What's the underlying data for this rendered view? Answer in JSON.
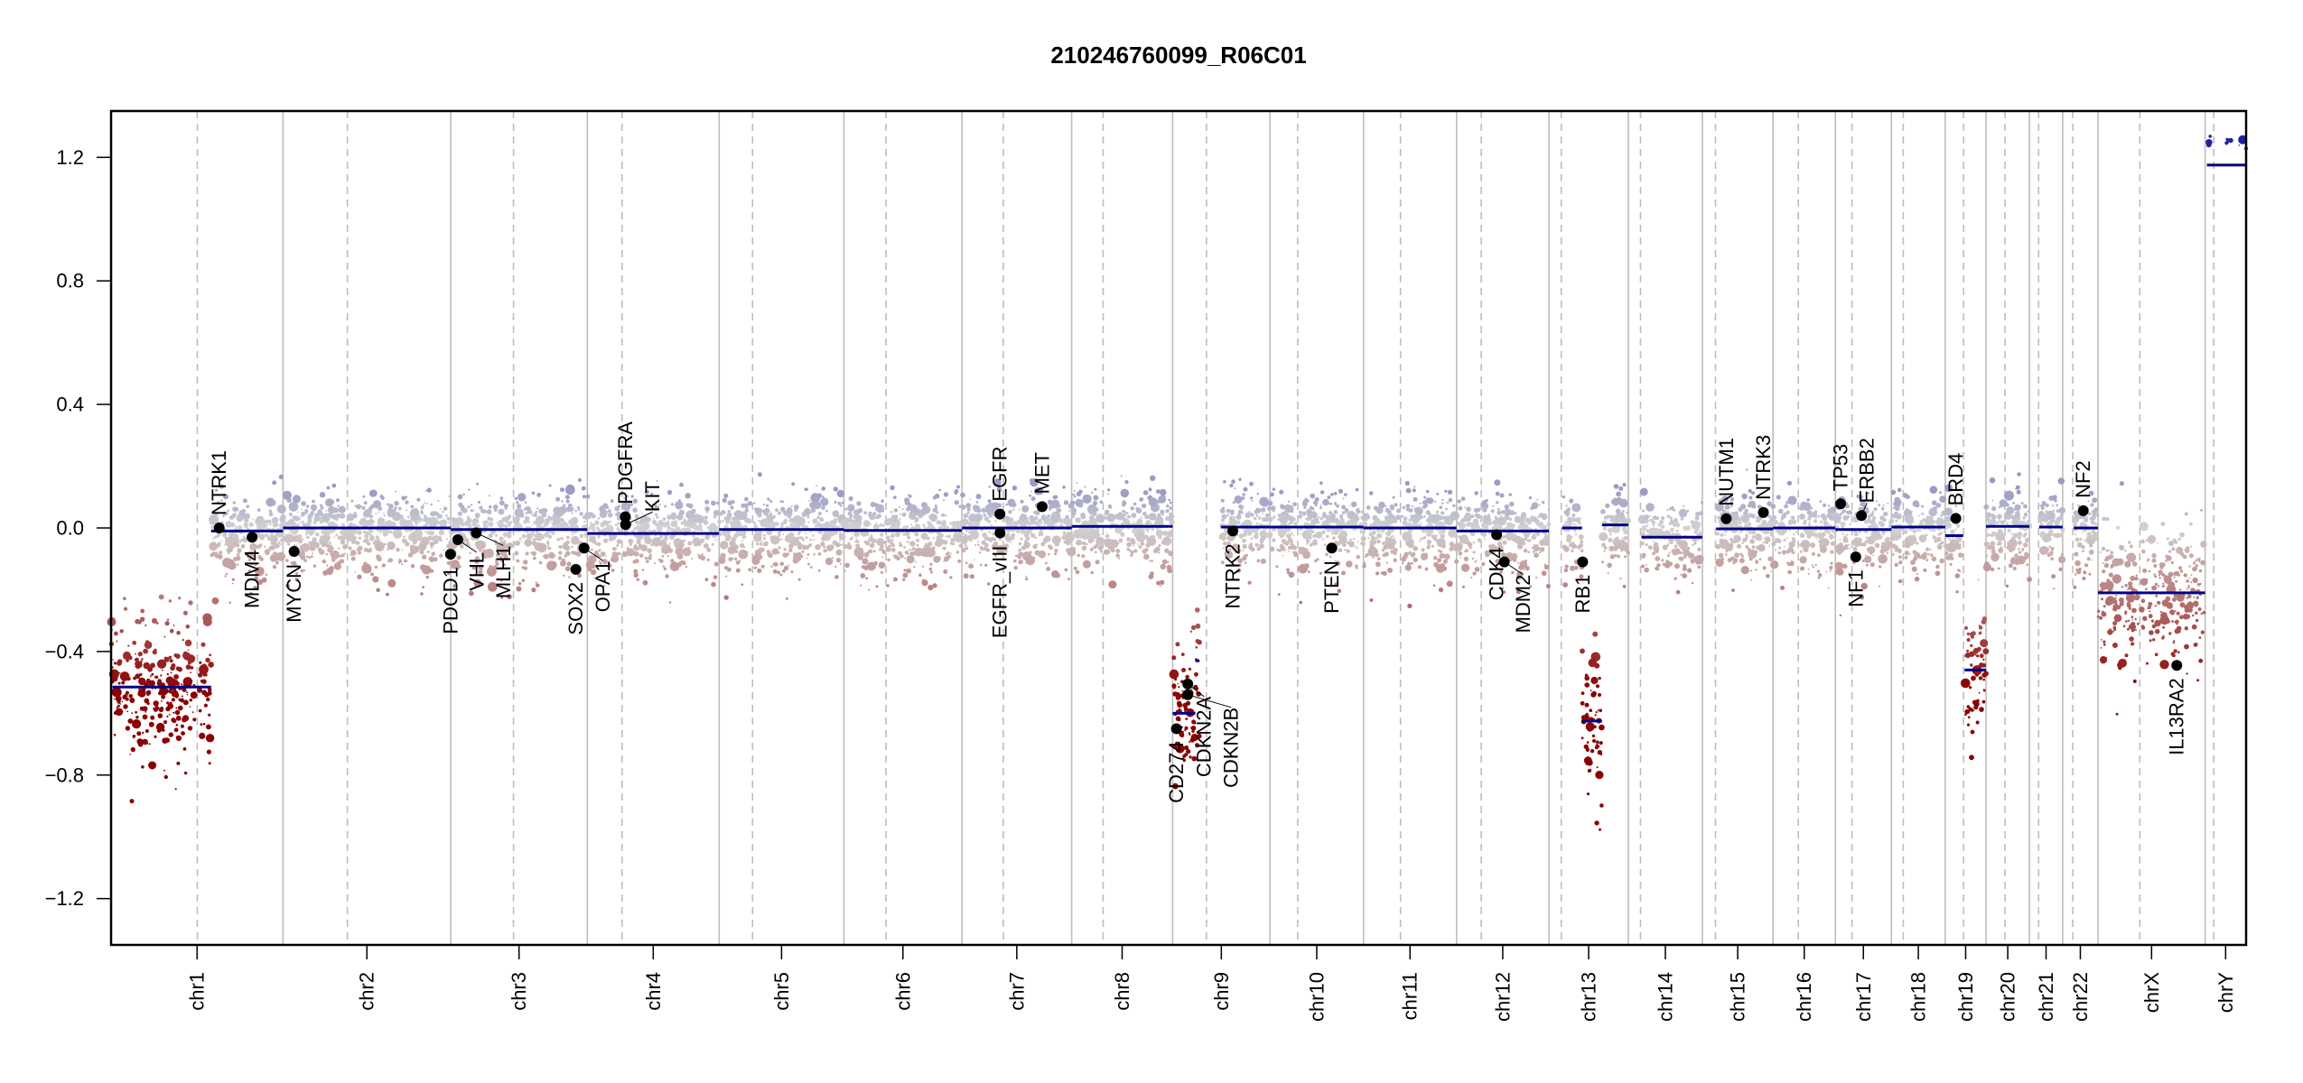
{
  "chart_data": {
    "type": "scatter",
    "title": "210246760099_R06C01",
    "xlabel": "",
    "ylabel": "",
    "ylim": [
      -1.35,
      1.35
    ],
    "yticks": [
      -1.2,
      -0.8,
      -0.4,
      0.0,
      0.4,
      0.8,
      1.2
    ],
    "ytick_labels": [
      "−1.2",
      "−0.8",
      "−0.4",
      "0.0",
      "0.4",
      "0.8",
      "1.2"
    ],
    "grid": false,
    "colors": {
      "segment": "#00008b",
      "gain": "#9a9ac4",
      "neutral": "#d2d2d2",
      "loss_mild": "#c4a0a0",
      "loss_deep": "#8b0000",
      "chr_line": "#bdbdbd",
      "gene_dot": "#000000"
    },
    "chromosomes": [
      {
        "name": "chr1",
        "length_mb": 249.3,
        "centromere_mb": 125.0
      },
      {
        "name": "chr2",
        "length_mb": 243.2,
        "centromere_mb": 93.3
      },
      {
        "name": "chr3",
        "length_mb": 198.0,
        "centromere_mb": 91.0
      },
      {
        "name": "chr4",
        "length_mb": 191.2,
        "centromere_mb": 50.4
      },
      {
        "name": "chr5",
        "length_mb": 180.9,
        "centromere_mb": 48.4
      },
      {
        "name": "chr6",
        "length_mb": 171.1,
        "centromere_mb": 61.0
      },
      {
        "name": "chr7",
        "length_mb": 159.1,
        "centromere_mb": 59.9
      },
      {
        "name": "chr8",
        "length_mb": 146.4,
        "centromere_mb": 45.6
      },
      {
        "name": "chr9",
        "length_mb": 141.2,
        "centromere_mb": 49.0
      },
      {
        "name": "chr10",
        "length_mb": 135.5,
        "centromere_mb": 40.2
      },
      {
        "name": "chr11",
        "length_mb": 135.0,
        "centromere_mb": 53.7
      },
      {
        "name": "chr12",
        "length_mb": 133.9,
        "centromere_mb": 35.8
      },
      {
        "name": "chr13",
        "length_mb": 115.2,
        "centromere_mb": 17.9
      },
      {
        "name": "chr14",
        "length_mb": 107.3,
        "centromere_mb": 17.6
      },
      {
        "name": "chr15",
        "length_mb": 102.5,
        "centromere_mb": 19.0
      },
      {
        "name": "chr16",
        "length_mb": 90.4,
        "centromere_mb": 36.6
      },
      {
        "name": "chr17",
        "length_mb": 81.2,
        "centromere_mb": 24.0
      },
      {
        "name": "chr18",
        "length_mb": 78.1,
        "centromere_mb": 17.2
      },
      {
        "name": "chr19",
        "length_mb": 59.1,
        "centromere_mb": 26.5
      },
      {
        "name": "chr20",
        "length_mb": 63.0,
        "centromere_mb": 27.5
      },
      {
        "name": "chr21",
        "length_mb": 48.1,
        "centromere_mb": 13.2
      },
      {
        "name": "chr22",
        "length_mb": 51.3,
        "centromere_mb": 14.7
      },
      {
        "name": "chrX",
        "length_mb": 155.3,
        "centromere_mb": 60.6
      },
      {
        "name": "chrY",
        "length_mb": 59.4,
        "centromere_mb": 12.5
      }
    ],
    "segments": [
      {
        "chr": "chr1",
        "start_mb": 0,
        "end_mb": 2,
        "value": -0.33
      },
      {
        "chr": "chr1",
        "start_mb": 2,
        "end_mb": 145,
        "value": -0.515
      },
      {
        "chr": "chr1",
        "start_mb": 145,
        "end_mb": 249.3,
        "value": -0.01
      },
      {
        "chr": "chr2",
        "start_mb": 0,
        "end_mb": 243.2,
        "value": 0.0
      },
      {
        "chr": "chr3",
        "start_mb": 0,
        "end_mb": 198.0,
        "value": -0.005
      },
      {
        "chr": "chr4",
        "start_mb": 0,
        "end_mb": 191.2,
        "value": -0.018
      },
      {
        "chr": "chr5",
        "start_mb": 0,
        "end_mb": 180.9,
        "value": -0.005
      },
      {
        "chr": "chr6",
        "start_mb": 0,
        "end_mb": 171.1,
        "value": -0.008
      },
      {
        "chr": "chr7",
        "start_mb": 0,
        "end_mb": 159.1,
        "value": 0.0
      },
      {
        "chr": "chr8",
        "start_mb": 0,
        "end_mb": 146.4,
        "value": 0.005
      },
      {
        "chr": "chr9",
        "start_mb": 0,
        "end_mb": 33,
        "value": -0.6
      },
      {
        "chr": "chr9",
        "start_mb": 33,
        "end_mb": 39,
        "value": -0.43
      },
      {
        "chr": "chr9",
        "start_mb": 70,
        "end_mb": 141.2,
        "value": 0.003
      },
      {
        "chr": "chr10",
        "start_mb": 0,
        "end_mb": 135.5,
        "value": 0.003
      },
      {
        "chr": "chr11",
        "start_mb": 0,
        "end_mb": 135.0,
        "value": 0.0
      },
      {
        "chr": "chr12",
        "start_mb": 0,
        "end_mb": 133.9,
        "value": -0.01
      },
      {
        "chr": "chr13",
        "start_mb": 19,
        "end_mb": 48,
        "value": 0.0
      },
      {
        "chr": "chr13",
        "start_mb": 48,
        "end_mb": 77,
        "value": -0.625
      },
      {
        "chr": "chr13",
        "start_mb": 77,
        "end_mb": 115.2,
        "value": 0.01
      },
      {
        "chr": "chr14",
        "start_mb": 19,
        "end_mb": 107.3,
        "value": -0.03
      },
      {
        "chr": "chr15",
        "start_mb": 20,
        "end_mb": 102.5,
        "value": -0.003
      },
      {
        "chr": "chr16",
        "start_mb": 0,
        "end_mb": 90.4,
        "value": 0.0
      },
      {
        "chr": "chr17",
        "start_mb": 0,
        "end_mb": 81.2,
        "value": -0.005
      },
      {
        "chr": "chr18",
        "start_mb": 0,
        "end_mb": 78.1,
        "value": 0.003
      },
      {
        "chr": "chr19",
        "start_mb": 0,
        "end_mb": 26,
        "value": -0.025
      },
      {
        "chr": "chr19",
        "start_mb": 28,
        "end_mb": 59.1,
        "value": -0.46
      },
      {
        "chr": "chr20",
        "start_mb": 0,
        "end_mb": 63.0,
        "value": 0.005
      },
      {
        "chr": "chr21",
        "start_mb": 14,
        "end_mb": 48.1,
        "value": 0.003
      },
      {
        "chr": "chr22",
        "start_mb": 16,
        "end_mb": 51.3,
        "value": 0.0
      },
      {
        "chr": "chrX",
        "start_mb": 0,
        "end_mb": 155.3,
        "value": -0.21
      },
      {
        "chr": "chrY",
        "start_mb": 2.6,
        "end_mb": 59.4,
        "value": 1.175
      }
    ],
    "genes": [
      {
        "name": "NTRK1",
        "chr": "chr1",
        "pos_mb": 156.8,
        "value": 0.0
      },
      {
        "name": "MDM4",
        "chr": "chr1",
        "pos_mb": 204.5,
        "value": -0.03
      },
      {
        "name": "MYCN",
        "chr": "chr2",
        "pos_mb": 16.1,
        "value": -0.076
      },
      {
        "name": "PDCD1",
        "chr": "chr2",
        "pos_mb": 242.8,
        "value": -0.085
      },
      {
        "name": "VHL",
        "chr": "chr3",
        "pos_mb": 10.2,
        "value": -0.038
      },
      {
        "name": "MLH1",
        "chr": "chr3",
        "pos_mb": 37.0,
        "value": -0.016
      },
      {
        "name": "SOX2",
        "chr": "chr3",
        "pos_mb": 181.4,
        "value": -0.134
      },
      {
        "name": "OPA1",
        "chr": "chr3",
        "pos_mb": 193.3,
        "value": -0.065
      },
      {
        "name": "PDGFRA",
        "chr": "chr4",
        "pos_mb": 55.1,
        "value": 0.036
      },
      {
        "name": "KIT",
        "chr": "chr4",
        "pos_mb": 55.5,
        "value": 0.011
      },
      {
        "name": "EGFR",
        "chr": "chr7",
        "pos_mb": 55.1,
        "value": 0.045
      },
      {
        "name": "EGFR_vIII",
        "chr": "chr7",
        "pos_mb": 55.2,
        "value": -0.016
      },
      {
        "name": "MET",
        "chr": "chr7",
        "pos_mb": 116.3,
        "value": 0.069
      },
      {
        "name": "CD274",
        "chr": "chr9",
        "pos_mb": 5.5,
        "value": -0.65
      },
      {
        "name": "CDKN2A",
        "chr": "chr9",
        "pos_mb": 21.97,
        "value": -0.505
      },
      {
        "name": "CDKN2B",
        "chr": "chr9",
        "pos_mb": 22.0,
        "value": -0.54
      },
      {
        "name": "NTRK2",
        "chr": "chr9",
        "pos_mb": 87.3,
        "value": -0.01
      },
      {
        "name": "PTEN",
        "chr": "chr10",
        "pos_mb": 89.6,
        "value": -0.065
      },
      {
        "name": "CDK4",
        "chr": "chr12",
        "pos_mb": 58.1,
        "value": -0.022
      },
      {
        "name": "MDM2",
        "chr": "chr12",
        "pos_mb": 69.2,
        "value": -0.11
      },
      {
        "name": "RB1",
        "chr": "chr13",
        "pos_mb": 48.9,
        "value": -0.11
      },
      {
        "name": "NUTM1",
        "chr": "chr15",
        "pos_mb": 34.6,
        "value": 0.03
      },
      {
        "name": "NTRK3",
        "chr": "chr15",
        "pos_mb": 88.5,
        "value": 0.05
      },
      {
        "name": "TP53",
        "chr": "chr17",
        "pos_mb": 7.5,
        "value": 0.078
      },
      {
        "name": "NF1",
        "chr": "chr17",
        "pos_mb": 29.5,
        "value": -0.094
      },
      {
        "name": "ERBB2",
        "chr": "chr17",
        "pos_mb": 37.8,
        "value": 0.04
      },
      {
        "name": "BRD4",
        "chr": "chr19",
        "pos_mb": 15.3,
        "value": 0.031
      },
      {
        "name": "NF2",
        "chr": "chr22",
        "pos_mb": 29.9,
        "value": 0.056
      },
      {
        "name": "IL13RA2",
        "chr": "chrX",
        "pos_mb": 114.2,
        "value": -0.445
      }
    ]
  }
}
